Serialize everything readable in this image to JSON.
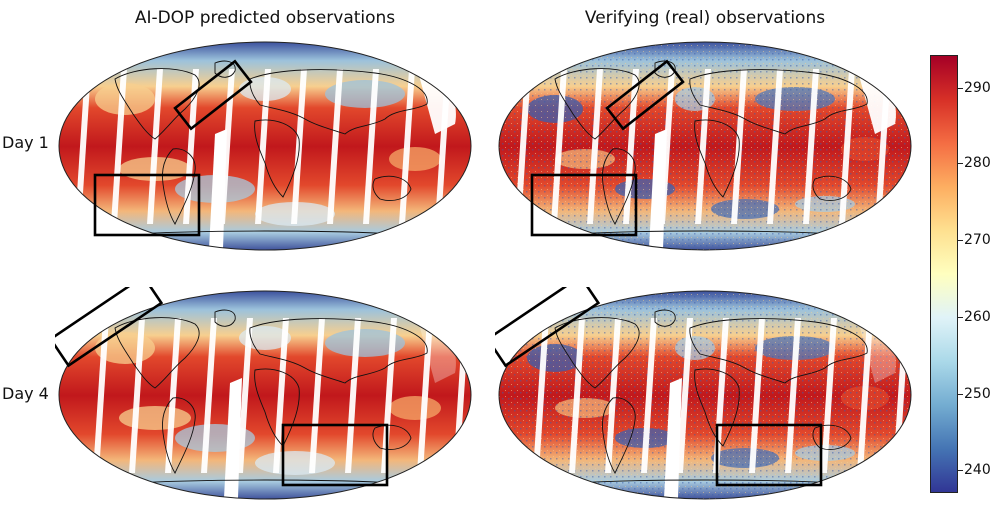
{
  "columns": {
    "left_title": "AI-DOP predicted observations",
    "right_title": "Verifying (real) observations"
  },
  "rows": {
    "row1_label": "Day 1",
    "row2_label": "Day 4"
  },
  "colorbar": {
    "ticks": [
      "290",
      "280",
      "270",
      "260",
      "250",
      "240"
    ],
    "colormap": [
      "#313695",
      "#4575b4",
      "#74add1",
      "#abd9e9",
      "#e0f3f8",
      "#ffffbf",
      "#fee090",
      "#fdae61",
      "#f46d43",
      "#d73027",
      "#a50026"
    ]
  },
  "colors": {
    "warm": "#d7301f",
    "mid": "#f9c98a",
    "cold": "#3a5cad",
    "light": "#dbe9f3",
    "land_outline": "#111111",
    "box_outline": "#000000"
  }
}
